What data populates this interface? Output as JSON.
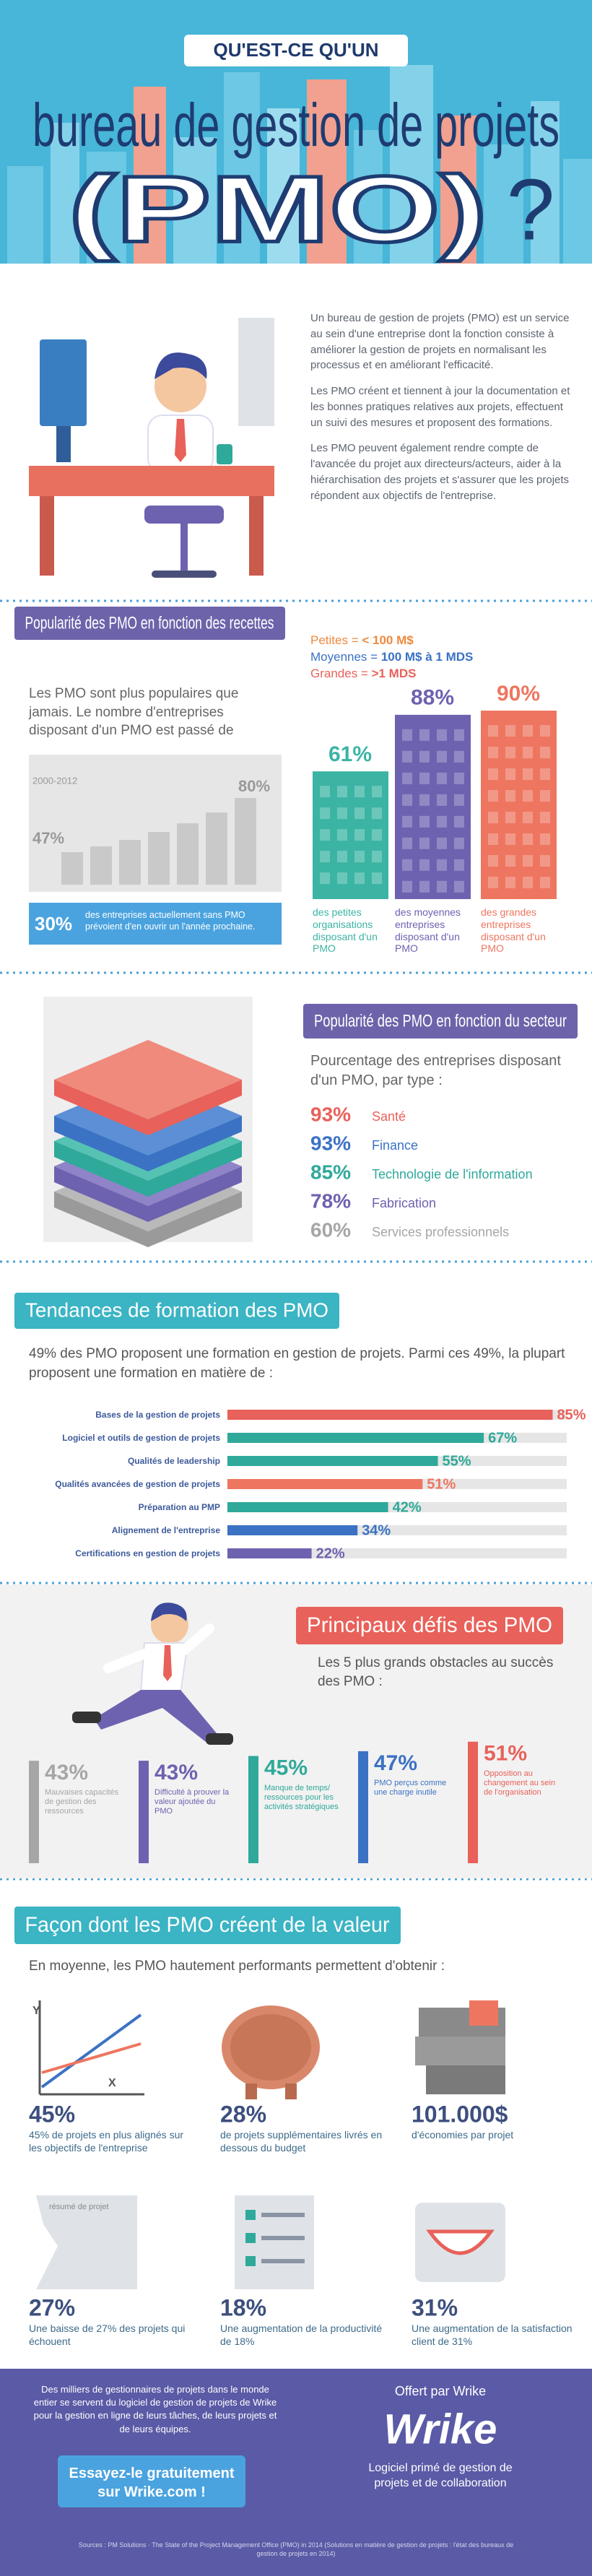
{
  "header": {
    "kicker": "QU'EST-CE QU'UN",
    "title": "bureau de gestion de projets",
    "acronym": "(PMO)",
    "question": "?"
  },
  "intro": {
    "paragraphs": [
      "Un bureau de gestion de projets (PMO) est un service au sein d'une entreprise dont la fonction consiste à améliorer la gestion de projets en normalisant les processus et en améliorant l'efficacité.",
      "Les PMO créent et tiennent à jour la documentation et les bonnes pratiques relatives aux projets, effectuent un suivi des mesures et proposent des formations.",
      "Les PMO peuvent également rendre compte de l'avancée du projet aux directeurs/acteurs, aider à la hiérarchisation des projets et s'assurer que les projets répondent aux objectifs de l'entreprise."
    ]
  },
  "revenue": {
    "heading": "Popularité des PMO en fonction des recettes",
    "legend": [
      {
        "label": "Petites = ",
        "value": "< 100 M$",
        "color": "#f08a3c"
      },
      {
        "label": "Moyennes = ",
        "value": "100 M$ à 1 MDS",
        "color": "#3b72c4"
      },
      {
        "label": "Grandes = ",
        "value": ">1 MDS",
        "color": "#e8615a"
      }
    ],
    "text": "Les PMO sont plus populaires que jamais. Le nombre d'entreprises disposant d'un PMO est passé de",
    "growth": {
      "period": "2000-2012",
      "start": "47%",
      "end": "80%"
    },
    "note": {
      "value": "30%",
      "text": "des entreprises actuellement sans PMO prévoient d'en ouvrir un l'année prochaine."
    },
    "bars": [
      {
        "value": 61,
        "value_label": "61%",
        "caption": "des petites organisations disposant d'un PMO",
        "color": "#3bb4a4"
      },
      {
        "value": 88,
        "value_label": "88%",
        "caption": "des moyennes entreprises disposant d'un PMO",
        "color": "#6d62b0"
      },
      {
        "value": 90,
        "value_label": "90%",
        "caption": "des grandes entreprises disposant d'un PMO",
        "color": "#ee7660"
      }
    ]
  },
  "sector": {
    "heading": "Popularité des PMO en fonction du secteur",
    "lead": "Pourcentage des entreprises disposant d'un PMO, par type :",
    "items": [
      {
        "value": "93%",
        "label": "Santé",
        "color": "#e8615a"
      },
      {
        "value": "93%",
        "label": "Finance",
        "color": "#3b72c4"
      },
      {
        "value": "85%",
        "label": "Technologie de l'information",
        "color": "#2fa99a"
      },
      {
        "value": "78%",
        "label": "Fabrication",
        "color": "#6d62b0"
      },
      {
        "value": "60%",
        "label": "Services professionnels",
        "color": "#a6a6a6"
      }
    ]
  },
  "training": {
    "heading": "Tendances de formation des PMO",
    "text": "49% des PMO proposent une formation en gestion de projets. Parmi ces 49%, la plupart proposent une formation en matière de :",
    "items": [
      {
        "label": "Bases de la gestion de projets",
        "value": 85,
        "value_label": "85%",
        "color": "#e8615a"
      },
      {
        "label": "Logiciel et outils de gestion de projets",
        "value": 67,
        "value_label": "67%",
        "color": "#2fa99a"
      },
      {
        "label": "Qualités de leadership",
        "value": 55,
        "value_label": "55%",
        "color": "#2fa99a"
      },
      {
        "label": "Qualités avancées de gestion de projets",
        "value": 51,
        "value_label": "51%",
        "color": "#ee7660"
      },
      {
        "label": "Préparation au PMP",
        "value": 42,
        "value_label": "42%",
        "color": "#2fa99a"
      },
      {
        "label": "Alignement de l'entreprise",
        "value": 34,
        "value_label": "34%",
        "color": "#3b72c4"
      },
      {
        "label": "Certifications en gestion de projets",
        "value": 22,
        "value_label": "22%",
        "color": "#6d62b0"
      }
    ]
  },
  "challenges": {
    "heading": "Principaux défis des PMO",
    "lead": "Les 5 plus grands obstacles au succès des PMO :",
    "items": [
      {
        "value": 43,
        "value_label": "43%",
        "caption": "Mauvaises capacités de gestion des ressources",
        "color": "#a6a6a6"
      },
      {
        "value": 43,
        "value_label": "43%",
        "caption": "Difficulté à prouver la valeur ajoutée du PMO",
        "color": "#6d62b0"
      },
      {
        "value": 45,
        "value_label": "45%",
        "caption": "Manque de temps/ ressources pour les activités stratégiques",
        "color": "#2fa99a"
      },
      {
        "value": 47,
        "value_label": "47%",
        "caption": "PMO perçus comme une charge inutile",
        "color": "#3b72c4"
      },
      {
        "value": 51,
        "value_label": "51%",
        "caption": "Opposition au changement au sein de l'organisation",
        "color": "#e8615a"
      }
    ]
  },
  "value": {
    "heading": "Façon dont les PMO créent de la valeur",
    "lead": "En moyenne, les PMO hautement performants permettent d'obtenir :",
    "icon_texts": {
      "y_axis": "Y",
      "x_axis": "X",
      "document": "résumé de projet"
    },
    "items": [
      {
        "value": "45%",
        "caption": "45% de projets en plus alignés sur les objectifs de l'entreprise"
      },
      {
        "value": "28%",
        "caption": "de projets supplémentaires livrés en dessous du budget"
      },
      {
        "value": "101.000$",
        "caption": "d'économies par projet"
      },
      {
        "value": "27%",
        "caption": "Une baisse de 27% des projets qui échouent"
      },
      {
        "value": "18%",
        "caption": "Une augmentation de la productivité de 18%"
      },
      {
        "value": "31%",
        "caption": "Une augmentation de la satisfaction client de 31%"
      }
    ]
  },
  "footer": {
    "text": "Des milliers de gestionnaires de projets dans le monde entier se servent du logiciel de gestion de projets de Wrike pour la gestion en ligne de leurs tâches, de leurs projets et de leurs équipes.",
    "button": "Essayez-le gratuitement sur Wrike.com !",
    "offered": "Offert par Wrike",
    "logo": "Wrike",
    "tagline": "Logiciel primé de gestion de projets et de collaboration",
    "sources": "Sources : PM Solutions · The State of the Project Management Office (PMO) in 2014 (Solutions en matière de gestion de projets : l'état des bureaux de gestion de projets en 2014)"
  }
}
